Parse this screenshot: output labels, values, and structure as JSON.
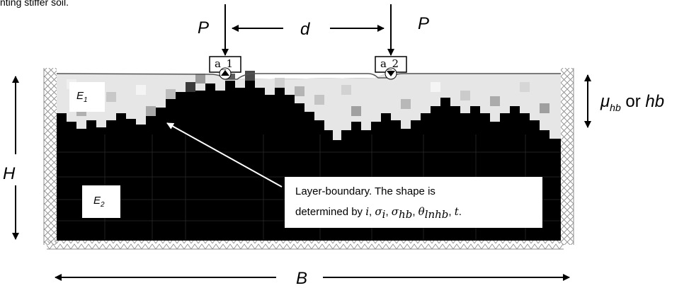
{
  "caption_fragment": "nting stiffer soil.",
  "loads": {
    "left": "P",
    "right": "P",
    "spacing": "d"
  },
  "footings": {
    "left": "a_1",
    "right": "a_2"
  },
  "dimensions": {
    "height": "H",
    "width": "B"
  },
  "layers": {
    "top_symbol": "E",
    "top_index": "1",
    "bottom_symbol": "E",
    "bottom_index": "2"
  },
  "thickness_label": {
    "mu": "μ",
    "mu_sub": "hb",
    "or": "or",
    "hb": "hb"
  },
  "callout": {
    "line1": "Layer-boundary.  The shape is",
    "line2_prefix": "determined by ",
    "params": [
      "i",
      "σ",
      "i",
      "σ",
      "hb",
      "θ",
      "lnhb",
      "t"
    ]
  },
  "colors": {
    "stiff_layer": "#000000",
    "soft_layer": "#e6e6e6",
    "support": "#8c8c8c"
  }
}
